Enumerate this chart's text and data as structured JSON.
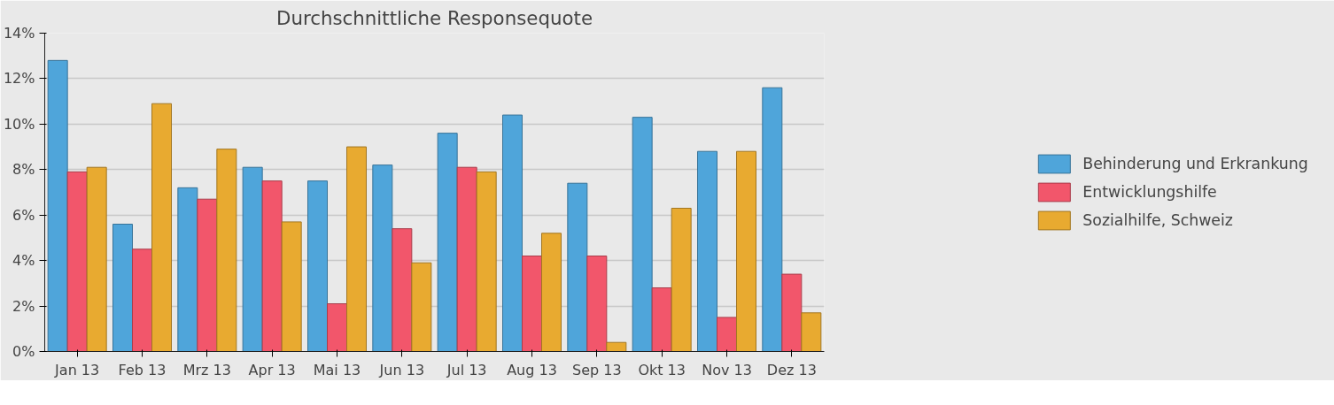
{
  "chart_data": {
    "type": "bar",
    "title": "Durchschnittliche Responsequote",
    "categories": [
      "Jan 13",
      "Feb 13",
      "Mrz 13",
      "Apr 13",
      "Mai 13",
      "Jun 13",
      "Jul 13",
      "Aug 13",
      "Sep 13",
      "Okt 13",
      "Nov 13",
      "Dez 13"
    ],
    "series": [
      {
        "name": "Behinderung und Erkrankung",
        "color": "#4fa5da",
        "values": [
          12.8,
          5.6,
          7.2,
          8.1,
          7.5,
          8.2,
          9.6,
          10.4,
          7.4,
          10.3,
          8.8,
          11.6
        ]
      },
      {
        "name": "Entwicklungshilfe",
        "color": "#f2566b",
        "values": [
          7.9,
          4.5,
          6.7,
          7.5,
          2.1,
          5.4,
          8.1,
          4.2,
          4.2,
          2.8,
          1.5,
          3.4
        ]
      },
      {
        "name": "Sozialhilfe, Schweiz",
        "color": "#e8aa30",
        "values": [
          8.1,
          10.9,
          8.9,
          5.7,
          9.0,
          3.9,
          7.9,
          5.2,
          0.4,
          6.3,
          8.8,
          1.7
        ]
      }
    ],
    "ylim": [
      0,
      14
    ],
    "yticks": [
      {
        "value": 0,
        "label": "0%"
      },
      {
        "value": 2,
        "label": "2%"
      },
      {
        "value": 4,
        "label": "4%"
      },
      {
        "value": 6,
        "label": "6%"
      },
      {
        "value": 8,
        "label": "8%"
      },
      {
        "value": 10,
        "label": "10%"
      },
      {
        "value": 12,
        "label": "12%"
      },
      {
        "value": 14,
        "label": "14%"
      }
    ],
    "grid": "y",
    "legend": "right"
  }
}
